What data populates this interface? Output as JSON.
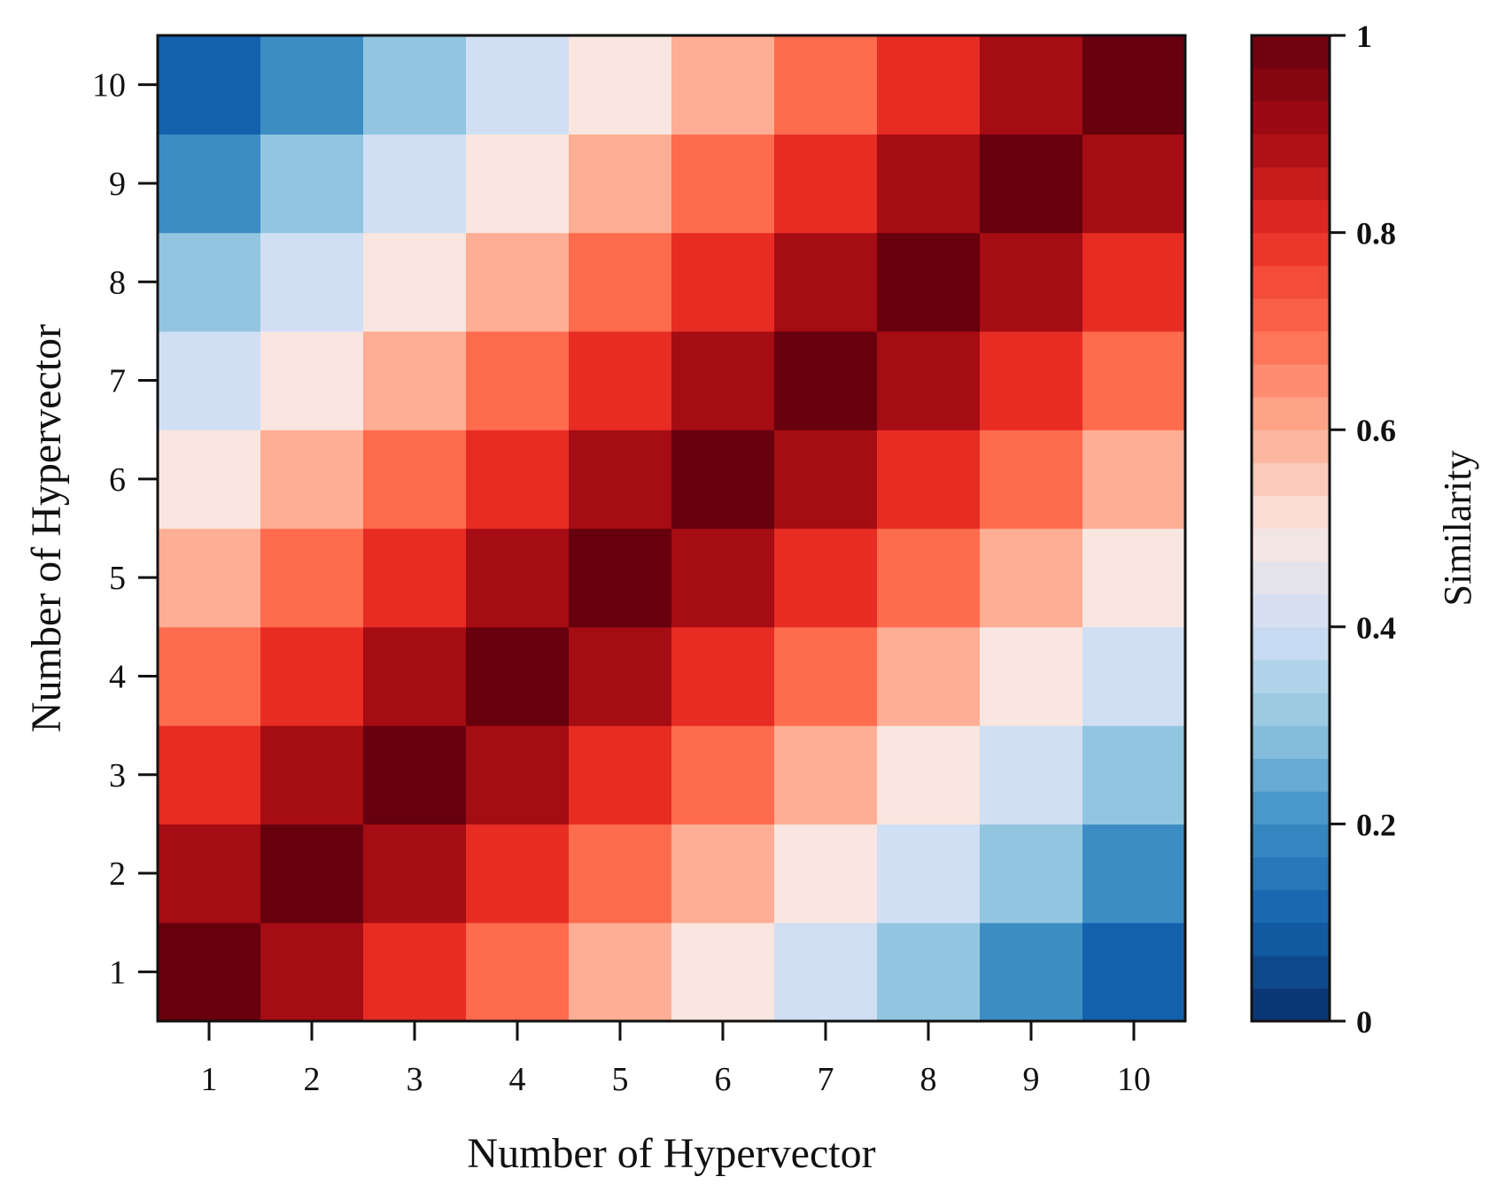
{
  "chart_data": {
    "type": "heatmap",
    "title": "",
    "xlabel": "Number of Hypervector",
    "ylabel": "Number of Hypervector",
    "x_categories": [
      "1",
      "2",
      "3",
      "4",
      "5",
      "6",
      "7",
      "8",
      "9",
      "10"
    ],
    "y_categories": [
      "1",
      "2",
      "3",
      "4",
      "5",
      "6",
      "7",
      "8",
      "9",
      "10"
    ],
    "values": [
      [
        1.0,
        0.9,
        0.8,
        0.7,
        0.6,
        0.5,
        0.4,
        0.3,
        0.2,
        0.1
      ],
      [
        0.9,
        1.0,
        0.9,
        0.8,
        0.7,
        0.6,
        0.5,
        0.4,
        0.3,
        0.2
      ],
      [
        0.8,
        0.9,
        1.0,
        0.9,
        0.8,
        0.7,
        0.6,
        0.5,
        0.4,
        0.3
      ],
      [
        0.7,
        0.8,
        0.9,
        1.0,
        0.9,
        0.8,
        0.7,
        0.6,
        0.5,
        0.4
      ],
      [
        0.6,
        0.7,
        0.8,
        0.9,
        1.0,
        0.9,
        0.8,
        0.7,
        0.6,
        0.5
      ],
      [
        0.5,
        0.6,
        0.7,
        0.8,
        0.9,
        1.0,
        0.9,
        0.8,
        0.7,
        0.6
      ],
      [
        0.4,
        0.5,
        0.6,
        0.7,
        0.8,
        0.9,
        1.0,
        0.9,
        0.8,
        0.7
      ],
      [
        0.3,
        0.4,
        0.5,
        0.6,
        0.7,
        0.8,
        0.9,
        1.0,
        0.9,
        0.8
      ],
      [
        0.2,
        0.3,
        0.4,
        0.5,
        0.6,
        0.7,
        0.8,
        0.9,
        1.0,
        0.9
      ],
      [
        0.1,
        0.2,
        0.3,
        0.4,
        0.5,
        0.6,
        0.7,
        0.8,
        0.9,
        1.0
      ]
    ],
    "colorbar": {
      "label": "Similarity",
      "range": [
        0,
        1
      ],
      "ticks": [
        0,
        0.2,
        0.4,
        0.6,
        0.8,
        1
      ],
      "tick_labels": [
        "0",
        "0.2",
        "0.4",
        "0.6",
        "0.8",
        "1"
      ],
      "levels": 30,
      "colormap": "RdBu_r"
    },
    "grid": false
  },
  "colors": {
    "stops": [
      [
        0.0,
        "#08306b"
      ],
      [
        0.1,
        "#1361ac"
      ],
      [
        0.2,
        "#3c8dc4"
      ],
      [
        0.3,
        "#92c6e0"
      ],
      [
        0.4,
        "#d0dff4"
      ],
      [
        0.5,
        "#f9e6e0"
      ],
      [
        0.6,
        "#fdae94"
      ],
      [
        0.7,
        "#fe6b4d"
      ],
      [
        0.8,
        "#e72c24"
      ],
      [
        0.9,
        "#a50c13"
      ],
      [
        1.0,
        "#67000d"
      ]
    ],
    "axis": "#111111"
  }
}
